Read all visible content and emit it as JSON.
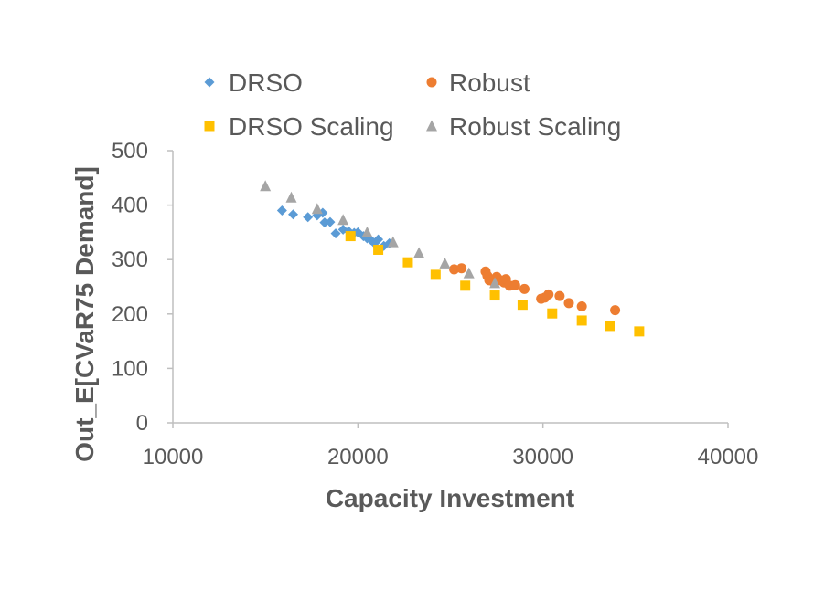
{
  "chart_data": {
    "type": "scatter",
    "title": "",
    "xlabel": "Capacity Investment",
    "ylabel": "Out_E[CVaR75 Demand]",
    "xlim": [
      10000,
      40000
    ],
    "ylim": [
      0,
      500
    ],
    "xticks": [
      10000,
      20000,
      30000,
      40000
    ],
    "yticks": [
      0,
      100,
      200,
      300,
      400,
      500
    ],
    "grid": false,
    "legend_position": "top",
    "series": [
      {
        "name": "DRSO",
        "marker": "diamond",
        "color": "#5B9BD5",
        "points": [
          [
            15900,
            390
          ],
          [
            16500,
            383
          ],
          [
            17300,
            378
          ],
          [
            17800,
            381
          ],
          [
            18100,
            386
          ],
          [
            18200,
            368
          ],
          [
            18500,
            369
          ],
          [
            18800,
            348
          ],
          [
            19200,
            355
          ],
          [
            19500,
            352
          ],
          [
            19800,
            349
          ],
          [
            20000,
            350
          ],
          [
            20300,
            343
          ],
          [
            20500,
            339
          ],
          [
            20700,
            336
          ],
          [
            20900,
            330
          ],
          [
            21100,
            337
          ],
          [
            21400,
            325
          ],
          [
            21700,
            330
          ]
        ]
      },
      {
        "name": "Robust",
        "marker": "circle",
        "color": "#ED7D31",
        "points": [
          [
            25200,
            282
          ],
          [
            25600,
            284
          ],
          [
            26900,
            278
          ],
          [
            27000,
            270
          ],
          [
            27100,
            262
          ],
          [
            27300,
            260
          ],
          [
            27500,
            268
          ],
          [
            27700,
            262
          ],
          [
            27900,
            258
          ],
          [
            28000,
            264
          ],
          [
            28200,
            252
          ],
          [
            28500,
            253
          ],
          [
            29000,
            246
          ],
          [
            29900,
            228
          ],
          [
            30100,
            230
          ],
          [
            30300,
            236
          ],
          [
            30900,
            233
          ],
          [
            31400,
            220
          ],
          [
            32100,
            214
          ],
          [
            33900,
            207
          ]
        ]
      },
      {
        "name": "DRSO Scaling",
        "marker": "square",
        "color": "#FFC000",
        "points": [
          [
            19600,
            343
          ],
          [
            21100,
            318
          ],
          [
            22700,
            295
          ],
          [
            24200,
            272
          ],
          [
            25800,
            252
          ],
          [
            27400,
            234
          ],
          [
            28900,
            217
          ],
          [
            30500,
            201
          ],
          [
            32100,
            188
          ],
          [
            33600,
            178
          ],
          [
            35200,
            168
          ]
        ]
      },
      {
        "name": "Robust Scaling",
        "marker": "triangle",
        "color": "#A5A5A5",
        "points": [
          [
            15000,
            435
          ],
          [
            16400,
            414
          ],
          [
            17800,
            393
          ],
          [
            19200,
            373
          ],
          [
            20500,
            350
          ],
          [
            21900,
            332
          ],
          [
            23300,
            312
          ],
          [
            24700,
            293
          ],
          [
            26000,
            275
          ],
          [
            27400,
            257
          ]
        ]
      }
    ]
  }
}
